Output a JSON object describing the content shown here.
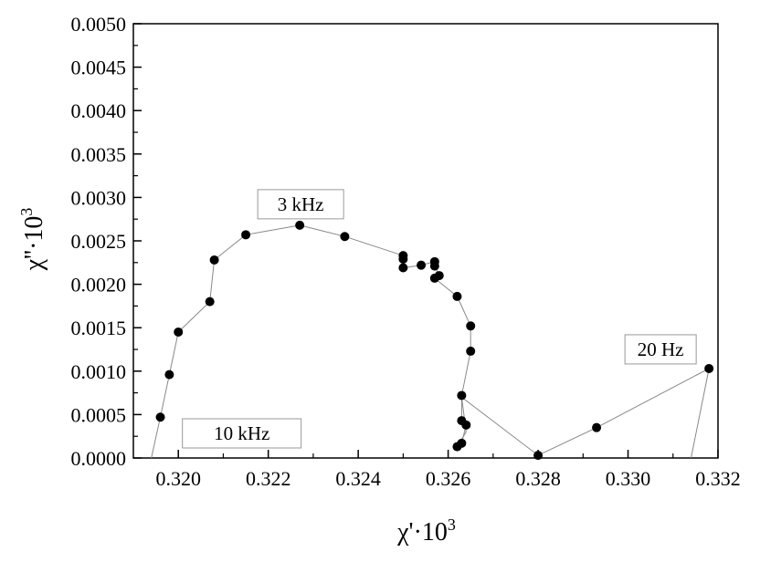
{
  "chart_data": {
    "type": "scatter",
    "xlabel": "χ'·10",
    "xlabel_sup": "3",
    "ylabel": "χ''·10",
    "ylabel_sup": "3",
    "xlim": [
      0.319,
      0.332
    ],
    "ylim": [
      0.0,
      0.005
    ],
    "x_ticks": [
      "0.320",
      "0.322",
      "0.324",
      "0.326",
      "0.328",
      "0.330",
      "0.332"
    ],
    "x_tick_values": [
      0.32,
      0.322,
      0.324,
      0.326,
      0.328,
      0.33,
      0.332
    ],
    "y_ticks": [
      "0.0000",
      "0.0005",
      "0.0010",
      "0.0015",
      "0.0020",
      "0.0025",
      "0.0030",
      "0.0035",
      "0.0040",
      "0.0045",
      "0.0050"
    ],
    "y_tick_values": [
      0.0,
      0.0005,
      0.001,
      0.0015,
      0.002,
      0.0025,
      0.003,
      0.0035,
      0.004,
      0.0045,
      0.005
    ],
    "grid": false,
    "marker_color": "#000000",
    "line_color": "#888888",
    "series": [
      {
        "x": [
          0.3194,
          0.3196,
          0.3198,
          0.32,
          0.3207,
          0.3208,
          0.3215,
          0.3227,
          0.3237,
          0.325,
          0.325,
          0.325,
          0.3254,
          0.3257,
          0.3257,
          0.3258,
          0.3257,
          0.3262,
          0.3265,
          0.3265,
          0.3263,
          0.3263,
          0.3264,
          0.3263,
          0.3262,
          0.3264,
          0.3263,
          0.328,
          0.3293,
          0.3318,
          0.3314
        ],
        "y": [
          0.0,
          0.00047,
          0.00096,
          0.00145,
          0.0018,
          0.00228,
          0.00257,
          0.00268,
          0.00255,
          0.00233,
          0.00229,
          0.00219,
          0.00222,
          0.00226,
          0.00221,
          0.0021,
          0.00207,
          0.00186,
          0.00152,
          0.00123,
          0.00072,
          0.00043,
          0.00038,
          0.00017,
          0.00013,
          0.0003,
          0.0007,
          3e-05,
          0.00035,
          0.00103,
          0.0
        ]
      }
    ],
    "marker_indices_skip": [
      0,
      25,
      26,
      30
    ],
    "annotations": [
      {
        "text": "3 kHz",
        "x": 0.3227,
        "y": 0.00268
      },
      {
        "text": "10 kHz",
        "x": 0.3194,
        "y": 0.0
      },
      {
        "text": "20 Hz",
        "x": 0.3318,
        "y": 0.00103
      }
    ]
  }
}
